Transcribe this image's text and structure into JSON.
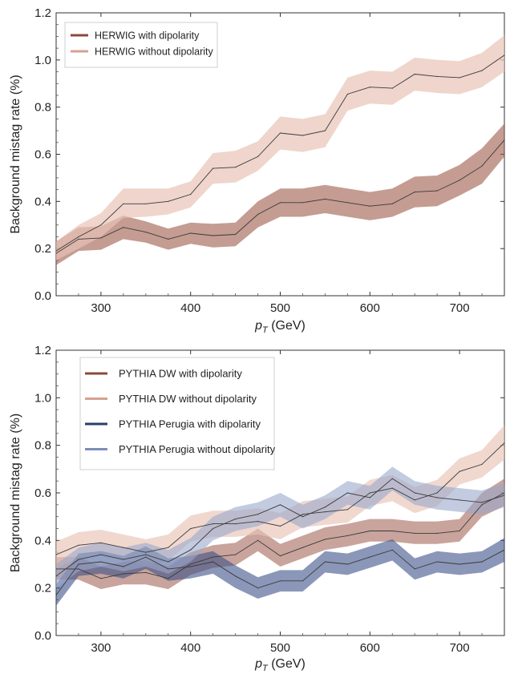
{
  "chart_data": [
    {
      "type": "line",
      "xlabel_main": "p",
      "xlabel_sub": "T",
      "xlabel_unit": " (GeV)",
      "ylabel": "Background mistag rate (%)",
      "xlim": [
        250,
        750
      ],
      "ylim": [
        0,
        1.2
      ],
      "xticks": [
        300,
        400,
        500,
        600,
        700
      ],
      "yticks": [
        "0.0",
        "0.2",
        "0.4",
        "0.6",
        "0.8",
        "1.0",
        "1.2"
      ],
      "legend_position": "top-left",
      "x": [
        250,
        275,
        300,
        325,
        350,
        375,
        400,
        425,
        450,
        475,
        500,
        525,
        550,
        575,
        600,
        625,
        650,
        675,
        700,
        725,
        750
      ],
      "series": [
        {
          "name": "HERWIG with dipolarity",
          "color": "#8b4a3a",
          "band_color": "#9c5a4a",
          "band_opacity": 0.6,
          "values": [
            0.18,
            0.24,
            0.245,
            0.29,
            0.27,
            0.24,
            0.265,
            0.255,
            0.26,
            0.345,
            0.395,
            0.395,
            0.41,
            0.395,
            0.38,
            0.39,
            0.44,
            0.445,
            0.49,
            0.55,
            0.66
          ],
          "lower": [
            0.13,
            0.19,
            0.195,
            0.24,
            0.225,
            0.195,
            0.22,
            0.205,
            0.21,
            0.29,
            0.335,
            0.335,
            0.35,
            0.335,
            0.32,
            0.335,
            0.375,
            0.38,
            0.425,
            0.475,
            0.59
          ],
          "upper": [
            0.23,
            0.29,
            0.295,
            0.34,
            0.315,
            0.285,
            0.31,
            0.305,
            0.31,
            0.4,
            0.455,
            0.455,
            0.47,
            0.455,
            0.44,
            0.455,
            0.505,
            0.51,
            0.555,
            0.625,
            0.73
          ]
        },
        {
          "name": "HERWIG without dipolarity",
          "color": "#d9a08f",
          "band_color": "#e8c3b6",
          "band_opacity": 0.7,
          "values": [
            0.19,
            0.25,
            0.3,
            0.39,
            0.39,
            0.4,
            0.43,
            0.54,
            0.545,
            0.59,
            0.69,
            0.68,
            0.7,
            0.855,
            0.885,
            0.88,
            0.94,
            0.93,
            0.925,
            0.955,
            1.02
          ],
          "lower": [
            0.15,
            0.2,
            0.25,
            0.33,
            0.335,
            0.345,
            0.375,
            0.475,
            0.48,
            0.53,
            0.62,
            0.61,
            0.63,
            0.785,
            0.815,
            0.81,
            0.87,
            0.86,
            0.855,
            0.885,
            0.95
          ],
          "upper": [
            0.23,
            0.3,
            0.35,
            0.455,
            0.455,
            0.455,
            0.485,
            0.605,
            0.615,
            0.655,
            0.76,
            0.75,
            0.77,
            0.925,
            0.955,
            0.95,
            1.01,
            1.0,
            0.995,
            1.03,
            1.105
          ]
        }
      ]
    },
    {
      "type": "line",
      "xlabel_main": "p",
      "xlabel_sub": "T",
      "xlabel_unit": " (GeV)",
      "ylabel": "Background mistag rate (%)",
      "xlim": [
        250,
        750
      ],
      "ylim": [
        0,
        1.2
      ],
      "xticks": [
        300,
        400,
        500,
        600,
        700
      ],
      "yticks": [
        "0.0",
        "0.2",
        "0.4",
        "0.6",
        "0.8",
        "1.0",
        "1.2"
      ],
      "legend_position": "top-left",
      "x": [
        250,
        275,
        300,
        325,
        350,
        375,
        400,
        425,
        450,
        475,
        500,
        525,
        550,
        575,
        600,
        625,
        650,
        675,
        700,
        725,
        750
      ],
      "series": [
        {
          "name": "PYTHIA DW with dipolarity",
          "color": "#8b4a3a",
          "band_color": "#9c5a4a",
          "band_opacity": 0.55,
          "values": [
            0.28,
            0.28,
            0.24,
            0.26,
            0.265,
            0.24,
            0.3,
            0.33,
            0.34,
            0.4,
            0.335,
            0.37,
            0.405,
            0.42,
            0.44,
            0.44,
            0.43,
            0.43,
            0.44,
            0.55,
            0.6
          ],
          "lower": [
            0.235,
            0.235,
            0.195,
            0.215,
            0.215,
            0.195,
            0.255,
            0.285,
            0.295,
            0.355,
            0.29,
            0.325,
            0.36,
            0.375,
            0.395,
            0.395,
            0.385,
            0.385,
            0.395,
            0.5,
            0.545
          ],
          "upper": [
            0.33,
            0.33,
            0.29,
            0.31,
            0.315,
            0.29,
            0.35,
            0.38,
            0.39,
            0.45,
            0.385,
            0.42,
            0.455,
            0.47,
            0.49,
            0.49,
            0.48,
            0.48,
            0.49,
            0.6,
            0.66
          ]
        },
        {
          "name": "PYTHIA DW without dipolarity",
          "color": "#d9a08f",
          "band_color": "#e8c3b6",
          "band_opacity": 0.65,
          "values": [
            0.34,
            0.38,
            0.39,
            0.37,
            0.35,
            0.37,
            0.45,
            0.47,
            0.47,
            0.48,
            0.46,
            0.51,
            0.52,
            0.53,
            0.6,
            0.62,
            0.57,
            0.6,
            0.69,
            0.72,
            0.81
          ],
          "lower": [
            0.285,
            0.325,
            0.335,
            0.315,
            0.295,
            0.315,
            0.395,
            0.415,
            0.415,
            0.425,
            0.405,
            0.455,
            0.465,
            0.475,
            0.545,
            0.565,
            0.515,
            0.545,
            0.635,
            0.665,
            0.74
          ],
          "upper": [
            0.395,
            0.435,
            0.445,
            0.425,
            0.405,
            0.425,
            0.505,
            0.525,
            0.525,
            0.535,
            0.515,
            0.565,
            0.575,
            0.585,
            0.655,
            0.675,
            0.625,
            0.655,
            0.745,
            0.78,
            0.885
          ]
        },
        {
          "name": "PYTHIA Perugia with dipolarity",
          "color": "#2c3e68",
          "band_color": "#3e5288",
          "band_opacity": 0.6,
          "values": [
            0.17,
            0.3,
            0.31,
            0.29,
            0.33,
            0.28,
            0.29,
            0.31,
            0.25,
            0.2,
            0.23,
            0.23,
            0.31,
            0.3,
            0.33,
            0.36,
            0.28,
            0.31,
            0.3,
            0.31,
            0.36
          ],
          "lower": [
            0.125,
            0.25,
            0.26,
            0.24,
            0.28,
            0.23,
            0.24,
            0.26,
            0.2,
            0.155,
            0.185,
            0.185,
            0.265,
            0.255,
            0.285,
            0.315,
            0.235,
            0.265,
            0.255,
            0.265,
            0.31
          ],
          "upper": [
            0.215,
            0.345,
            0.355,
            0.335,
            0.375,
            0.325,
            0.335,
            0.355,
            0.295,
            0.245,
            0.275,
            0.275,
            0.355,
            0.345,
            0.375,
            0.405,
            0.325,
            0.355,
            0.345,
            0.355,
            0.41
          ]
        },
        {
          "name": "PYTHIA Perugia without dipolarity",
          "color": "#7d8db8",
          "band_color": "#9aa8cc",
          "band_opacity": 0.6,
          "values": [
            0.25,
            0.32,
            0.34,
            0.32,
            0.34,
            0.31,
            0.36,
            0.45,
            0.49,
            0.51,
            0.55,
            0.5,
            0.54,
            0.6,
            0.58,
            0.66,
            0.6,
            0.58,
            0.57,
            0.56,
            0.59
          ],
          "lower": [
            0.2,
            0.27,
            0.29,
            0.27,
            0.29,
            0.26,
            0.31,
            0.4,
            0.44,
            0.46,
            0.5,
            0.45,
            0.49,
            0.55,
            0.53,
            0.61,
            0.55,
            0.53,
            0.52,
            0.51,
            0.54
          ],
          "upper": [
            0.3,
            0.37,
            0.39,
            0.37,
            0.39,
            0.36,
            0.41,
            0.5,
            0.54,
            0.56,
            0.6,
            0.55,
            0.59,
            0.65,
            0.63,
            0.71,
            0.65,
            0.63,
            0.62,
            0.61,
            0.64
          ]
        }
      ]
    }
  ]
}
